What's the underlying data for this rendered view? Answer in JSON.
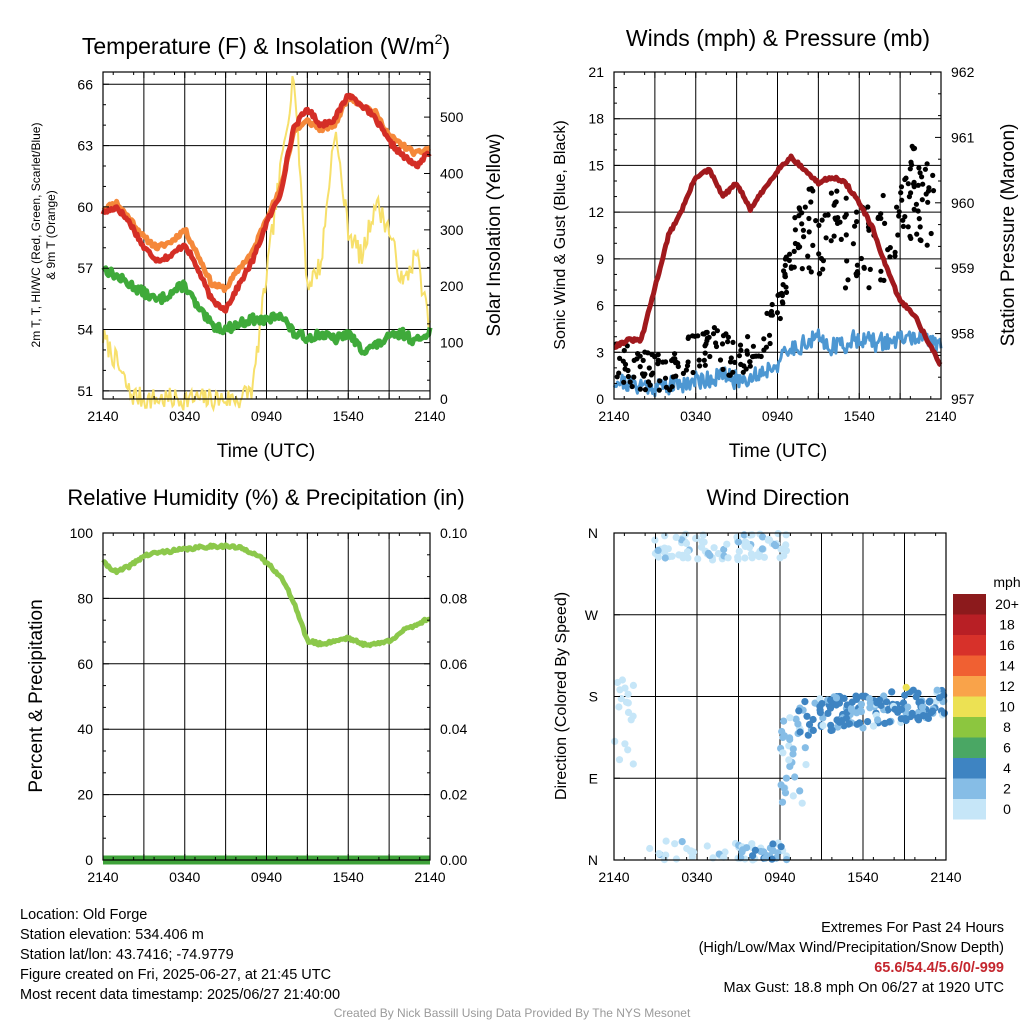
{
  "colors": {
    "t2m_red": "#d42e26",
    "t9m_orange": "#f5883a",
    "dewpoint_green": "#3faa3a",
    "solar_yellow": "#f7e06b",
    "sonic_blue": "#4d97d2",
    "gust_black": "#000000",
    "pressure_maroon": "#a0191d",
    "rh_green": "#8cc84b",
    "precip_green": "#3fa33a"
  },
  "time_ticks": [
    "2140",
    "0340",
    "0940",
    "1540",
    "2140"
  ],
  "chart_data": [
    {
      "type": "line",
      "title": "Temperature (F) & Insolation (W/m",
      "title_sup": "2",
      "title_close": ")",
      "xlabel": "Time (UTC)",
      "ylabel_line1": "2m T, T, HI/WC (Red, Green, Scarlet/Blue)",
      "ylabel_line2": "& 9m T (Orange)",
      "ylabel_right": "Solar Insolation (Yellow)",
      "ylim": [
        50.6,
        66.6
      ],
      "yticks": [
        "51",
        "54",
        "57",
        "60",
        "63",
        "66"
      ],
      "ylim_right": [
        0,
        580
      ],
      "yticks_right": [
        "0",
        "100",
        "200",
        "300",
        "400",
        "500"
      ],
      "x": [
        0,
        1,
        2,
        3,
        4,
        5,
        6,
        7,
        8,
        9,
        10,
        11,
        12,
        13,
        14,
        15,
        16,
        17,
        18,
        19,
        20,
        21,
        22,
        23,
        24
      ],
      "series": [
        {
          "key": "t9m",
          "values": [
            59.9,
            60.2,
            59.4,
            58.5,
            58.0,
            58.3,
            58.9,
            57.6,
            56.2,
            56.0,
            57.0,
            57.8,
            59.5,
            60.8,
            63.7,
            64.2,
            63.8,
            64.0,
            65.4,
            65.0,
            64.6,
            63.5,
            63.0,
            62.6,
            62.9
          ]
        },
        {
          "key": "t2m",
          "values": [
            59.7,
            60.0,
            59.2,
            58.0,
            57.4,
            57.6,
            58.2,
            56.9,
            55.4,
            55.0,
            56.2,
            57.4,
            59.2,
            60.6,
            63.9,
            64.8,
            64.0,
            64.3,
            65.5,
            65.0,
            64.3,
            63.2,
            62.5,
            62.0,
            62.7
          ]
        },
        {
          "key": "td",
          "values": [
            57.0,
            56.6,
            56.2,
            55.8,
            55.4,
            55.8,
            56.2,
            55.0,
            54.2,
            54.0,
            54.3,
            54.5,
            54.4,
            54.8,
            53.8,
            53.6,
            53.8,
            53.5,
            53.8,
            53.0,
            53.2,
            53.6,
            53.8,
            53.4,
            54.0
          ]
        },
        {
          "key": "solar",
          "values": [
            110,
            65,
            8,
            0,
            0,
            0,
            0,
            0,
            0,
            0,
            0,
            20,
            220,
            400,
            580,
            200,
            240,
            480,
            300,
            250,
            350,
            300,
            200,
            260,
            120
          ]
        }
      ]
    },
    {
      "type": "scatter",
      "title": "Winds (mph) & Pressure (mb)",
      "xlabel": "Time (UTC)",
      "ylabel": "Sonic Wind & Gust (Blue, Black)",
      "ylabel_right": "Station Pressure (Maroon)",
      "ylim": [
        0,
        21
      ],
      "yticks": [
        "0",
        "3",
        "6",
        "9",
        "12",
        "15",
        "18",
        "21"
      ],
      "ylim_right": [
        957,
        962
      ],
      "yticks_right": [
        "957",
        "958",
        "959",
        "960",
        "961",
        "962"
      ],
      "x": [
        0,
        1,
        2,
        3,
        4,
        5,
        6,
        7,
        8,
        9,
        10,
        11,
        12,
        13,
        14,
        15,
        16,
        17,
        18,
        19,
        20,
        21,
        22,
        23,
        24
      ],
      "series": [
        {
          "key": "pressure",
          "values": [
            957.8,
            957.9,
            957.9,
            958.7,
            959.5,
            959.9,
            960.4,
            960.5,
            960.1,
            960.3,
            959.9,
            960.2,
            960.5,
            960.7,
            960.5,
            960.3,
            960.4,
            960.3,
            960.0,
            959.6,
            959.0,
            958.5,
            958.3,
            957.9,
            957.5
          ]
        },
        {
          "key": "sonic",
          "values": [
            1.2,
            1.0,
            0.9,
            0.8,
            0.9,
            1.0,
            1.2,
            1.3,
            1.5,
            1.2,
            1.4,
            1.8,
            2.3,
            3.2,
            3.6,
            3.9,
            3.4,
            3.5,
            4.0,
            3.6,
            3.7,
            3.8,
            4.0,
            3.8,
            3.6
          ]
        },
        {
          "key": "gust",
          "values": [
            2.6,
            2.2,
            1.9,
            1.6,
            1.8,
            2.4,
            3.0,
            3.6,
            3.0,
            2.6,
            3.2,
            4.2,
            5.5,
            9.5,
            10.5,
            10.8,
            11.5,
            10.0,
            10.5,
            9.8,
            10.5,
            12.0,
            13.5,
            12.5,
            12.8
          ]
        }
      ]
    },
    {
      "type": "line",
      "title": "Relative Humidity (%) & Precipitation (in)",
      "xlabel": "",
      "ylabel": "Percent & Precipitation",
      "ylim": [
        0,
        100
      ],
      "yticks": [
        "0",
        "20",
        "40",
        "60",
        "80",
        "100"
      ],
      "ylim_right": [
        0,
        0.1
      ],
      "yticks_right": [
        "0.00",
        "0.02",
        "0.04",
        "0.06",
        "0.08",
        "0.10"
      ],
      "x": [
        0,
        1,
        2,
        3,
        4,
        5,
        6,
        7,
        8,
        9,
        10,
        11,
        12,
        13,
        14,
        15,
        16,
        17,
        18,
        19,
        20,
        21,
        22,
        23,
        24
      ],
      "series": [
        {
          "key": "rh",
          "values": [
            91,
            88,
            90,
            93,
            94,
            94.5,
            95,
            95.5,
            96,
            96,
            95.5,
            94,
            91,
            87,
            79,
            67,
            66,
            67,
            68,
            66,
            66,
            67,
            70,
            72,
            74
          ]
        },
        {
          "key": "precip",
          "values": [
            0,
            0,
            0,
            0,
            0,
            0,
            0,
            0,
            0,
            0,
            0,
            0,
            0,
            0,
            0,
            0,
            0,
            0,
            0,
            0,
            0,
            0,
            0,
            0,
            0
          ]
        }
      ]
    },
    {
      "type": "scatter",
      "title": "Wind Direction",
      "xlabel": "",
      "ylabel": "Direction (Colored By Speed)",
      "yticks": [
        "N",
        "E",
        "S",
        "W",
        "N"
      ],
      "legend": {
        "title": "mph",
        "labels": [
          "20+",
          "18",
          "16",
          "14",
          "12",
          "10",
          "8",
          "6",
          "4",
          "2",
          "0"
        ],
        "colors": [
          "#8c1a1c",
          "#b81f25",
          "#d7312a",
          "#f06032",
          "#f9a34a",
          "#ece153",
          "#8cc63f",
          "#4aa764",
          "#3e84c2",
          "#86bde6",
          "#c6e6f8"
        ]
      }
    }
  ],
  "info": {
    "location": "Location: Old Forge",
    "elevation": "Station elevation: 534.406 m",
    "latlon": "Station lat/lon: 43.7416; -74.9779",
    "created": "Figure created on Fri, 2025-06-27, at 21:45 UTC",
    "recent": "Most recent data timestamp: 2025/06/27 21:40:00",
    "extremes_title": "Extremes For Past 24 Hours",
    "extremes_desc": "(High/Low/Max Wind/Precipitation/Snow Depth)",
    "extremes_values": "65.6/54.4/5.6/0/-999",
    "max_gust": "Max Gust: 18.8 mph On 06/27 at 1920 UTC",
    "credit": "Created By Nick Bassill Using Data Provided By The NYS Mesonet"
  }
}
